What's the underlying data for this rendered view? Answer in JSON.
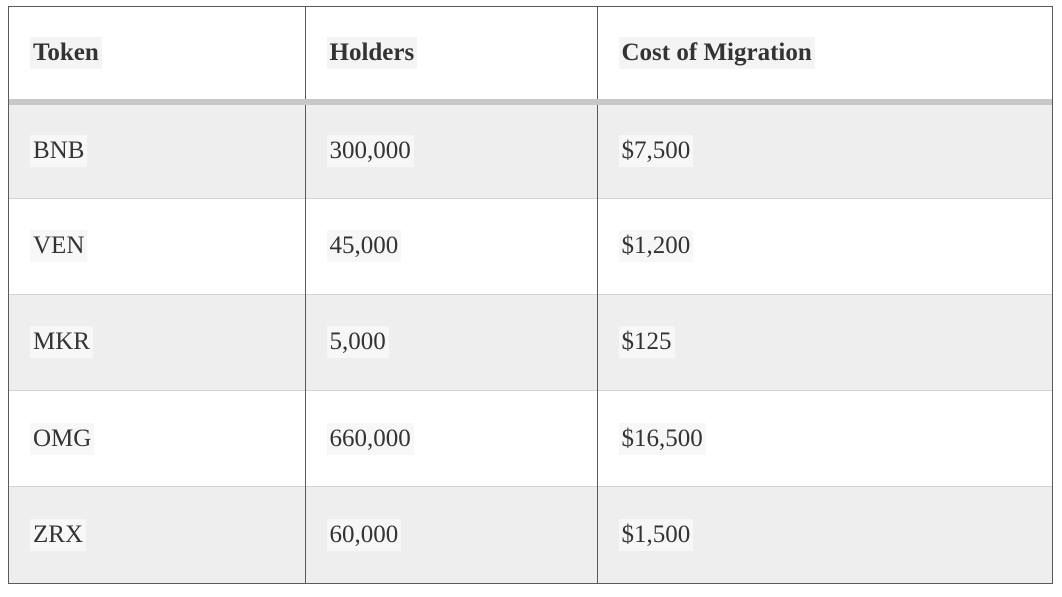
{
  "table": {
    "headers": [
      "Token",
      "Holders",
      "Cost of Migration"
    ],
    "rows": [
      [
        "BNB",
        "300,000",
        "$7,500"
      ],
      [
        "VEN",
        "45,000",
        "$1,200"
      ],
      [
        "MKR",
        "5,000",
        "$125"
      ],
      [
        "OMG",
        "660,000",
        "$16,500"
      ],
      [
        "ZRX",
        "60,000",
        "$1,500"
      ]
    ]
  }
}
